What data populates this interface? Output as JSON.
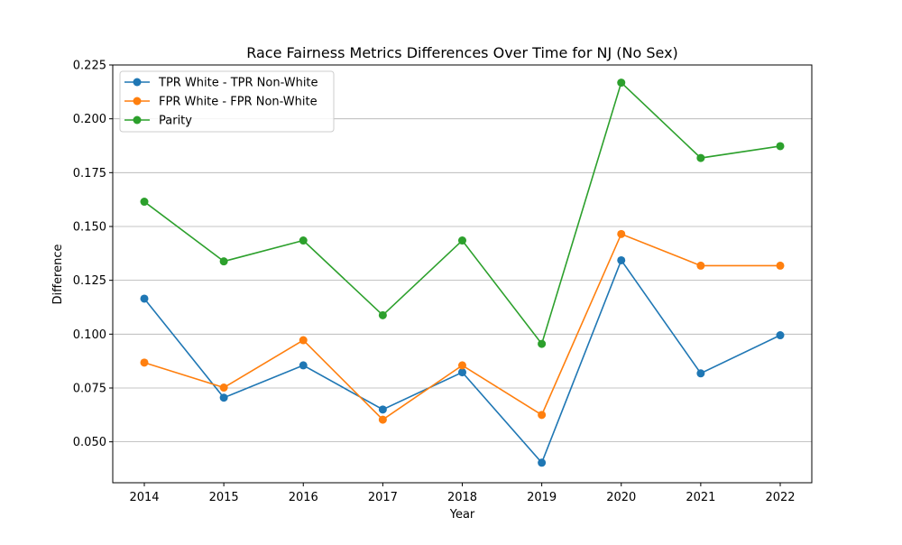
{
  "chart_data": {
    "type": "line",
    "title": "Race Fairness Metrics Differences Over Time for NJ (No Sex)",
    "xlabel": "Year",
    "ylabel": "Difference",
    "x": [
      2014,
      2015,
      2016,
      2017,
      2018,
      2019,
      2020,
      2021,
      2022
    ],
    "x_tick_labels": [
      "2014",
      "2015",
      "2016",
      "2017",
      "2018",
      "2019",
      "2020",
      "2021",
      "2022"
    ],
    "ylim": [
      0.031,
      0.225
    ],
    "y_ticks": [
      0.05,
      0.075,
      0.1,
      0.125,
      0.15,
      0.175,
      0.2,
      0.225
    ],
    "y_tick_labels": [
      "0.050",
      "0.075",
      "0.100",
      "0.125",
      "0.150",
      "0.175",
      "0.200",
      "0.225"
    ],
    "grid": "horizontal",
    "legend_position": "top-left",
    "series": [
      {
        "name": "TPR White - TPR Non-White",
        "color": "#1f77b4",
        "values": [
          0.1165,
          0.0705,
          0.0855,
          0.065,
          0.0823,
          0.0403,
          0.1343,
          0.0818,
          0.0995
        ]
      },
      {
        "name": "FPR White - FPR Non-White",
        "color": "#ff7f0e",
        "values": [
          0.0868,
          0.0752,
          0.0972,
          0.0603,
          0.0855,
          0.0625,
          0.1465,
          0.1318,
          0.1318
        ]
      },
      {
        "name": "Parity",
        "color": "#2ca02c",
        "values": [
          0.1615,
          0.1338,
          0.1435,
          0.1088,
          0.1435,
          0.0955,
          0.2168,
          0.1818,
          0.1873
        ]
      }
    ]
  }
}
